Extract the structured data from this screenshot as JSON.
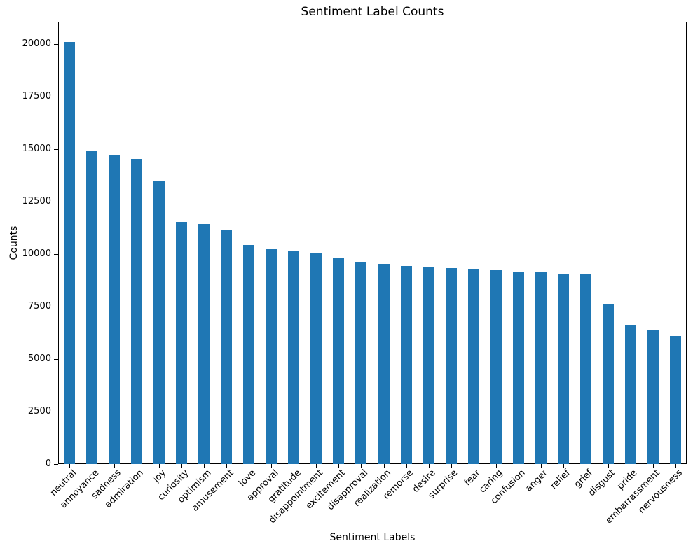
{
  "figure": {
    "background": "#ffffff",
    "text_color": "#000000",
    "spine_color": "#000000"
  },
  "chart_data": {
    "type": "bar",
    "title": "Sentiment Label Counts",
    "xlabel": "Sentiment Labels",
    "ylabel": "Counts",
    "categories": [
      "neutral",
      "annoyance",
      "sadness",
      "admiration",
      "joy",
      "curiosity",
      "optimism",
      "amusement",
      "love",
      "approval",
      "gratitude",
      "disappointment",
      "excitement",
      "disapproval",
      "realization",
      "remorse",
      "desire",
      "surprise",
      "fear",
      "caring",
      "confusion",
      "anger",
      "relief",
      "grief",
      "disgust",
      "pride",
      "embarrassment",
      "nervousness"
    ],
    "values": [
      20100,
      14950,
      14750,
      14550,
      13500,
      11550,
      11450,
      11150,
      10450,
      10250,
      10150,
      10050,
      9850,
      9650,
      9550,
      9450,
      9400,
      9350,
      9300,
      9250,
      9150,
      9150,
      9050,
      9050,
      7600,
      6600,
      6400,
      6100
    ],
    "bar_color": "#1f77b4",
    "ylim": [
      0,
      21067
    ],
    "yticks": [
      0,
      2500,
      5000,
      7500,
      10000,
      12500,
      15000,
      17500,
      20000
    ],
    "xtick_rotation_deg": 45,
    "grid": false,
    "legend": "none"
  }
}
